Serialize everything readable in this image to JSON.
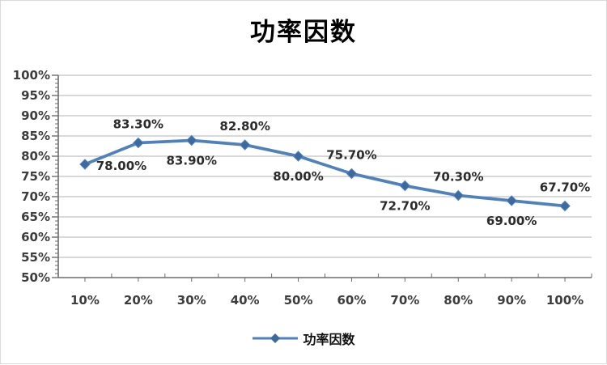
{
  "window": {
    "background": "#ffffff",
    "border_color": "#d9d9d9"
  },
  "chart_data": {
    "type": "line",
    "title": "功率因数",
    "categories": [
      "10%",
      "20%",
      "30%",
      "40%",
      "50%",
      "60%",
      "70%",
      "80%",
      "90%",
      "100%"
    ],
    "series": [
      {
        "name": "功率因数",
        "values": [
          78.0,
          83.3,
          83.9,
          82.8,
          80.0,
          75.7,
          72.7,
          70.3,
          69.0,
          67.7
        ]
      }
    ],
    "data_labels": [
      "78.00%",
      "83.30%",
      "83.90%",
      "82.80%",
      "80.00%",
      "75.70%",
      "72.70%",
      "70.30%",
      "69.00%",
      "67.70%"
    ],
    "label_placement": [
      "right",
      "above",
      "below",
      "above",
      "below",
      "above",
      "below",
      "above",
      "below",
      "above"
    ],
    "y_ticks": [
      "100%",
      "95%",
      "90%",
      "85%",
      "80%",
      "75%",
      "70%",
      "65%",
      "60%",
      "55%",
      "50%"
    ],
    "ylim": [
      50,
      100
    ],
    "y_major_step": 5,
    "y_minor_step": 1,
    "xlabel": "",
    "ylabel": "",
    "grid": true,
    "legend": {
      "label": "功率因数",
      "position": "bottom"
    },
    "colors": {
      "line": "#4f81bd",
      "marker": "#3b6aa0",
      "gridline": "#b3b3b3",
      "axis": "#6b6b6b",
      "tick_label": "#3d3d3d",
      "data_label": "#2b2b2b",
      "title": "#000000"
    }
  }
}
